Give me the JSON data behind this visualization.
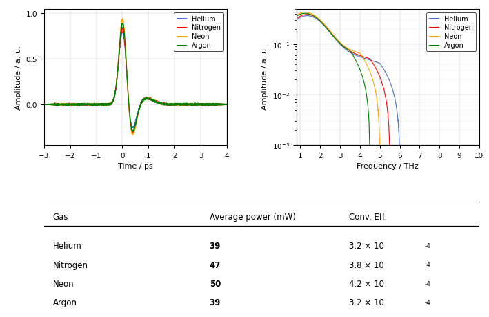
{
  "gases": [
    "Helium",
    "Nitrogen",
    "Neon",
    "Argon"
  ],
  "colors": [
    "#4472C4",
    "#FF0000",
    "#FFA500",
    "#008000"
  ],
  "table_headers": [
    "Gas",
    "Average power (mW)",
    "Conv. Eff."
  ],
  "table_rows": [
    [
      "Helium",
      "39",
      "3.2 × 10",
      "-4"
    ],
    [
      "Nitrogen",
      "47",
      "3.8 × 10",
      "-4"
    ],
    [
      "Neon",
      "50",
      "4.2 × 10",
      "-4"
    ],
    [
      "Argon",
      "39",
      "3.2 × 10",
      "-4"
    ]
  ],
  "time_xlim": [
    -3,
    4
  ],
  "time_xticks": [
    -3,
    -2,
    -1,
    0,
    1,
    2,
    3,
    4
  ],
  "time_ylim": [
    -0.45,
    1.05
  ],
  "time_yticks": [
    0,
    0.5,
    1
  ],
  "time_xlabel": "Time / ps",
  "time_ylabel": "Amplitude / a. u.",
  "freq_xlim": [
    0.8,
    10
  ],
  "freq_xlabel": "Frequency / THz",
  "freq_ylabel": "Amplitude / a. u.",
  "freq_xticks": [
    1,
    2,
    3,
    4,
    5,
    6,
    7,
    8,
    9,
    10
  ],
  "background_color": "#ffffff",
  "line_width": 0.8,
  "conv_eff_base": [
    "3.2 × 10",
    "3.8 × 10",
    "4.2 × 10",
    "3.2 × 10"
  ],
  "conv_eff_exp": [
    "-4",
    "-4",
    "-4",
    "-4"
  ],
  "avg_power": [
    "39",
    "47",
    "50",
    "39"
  ]
}
